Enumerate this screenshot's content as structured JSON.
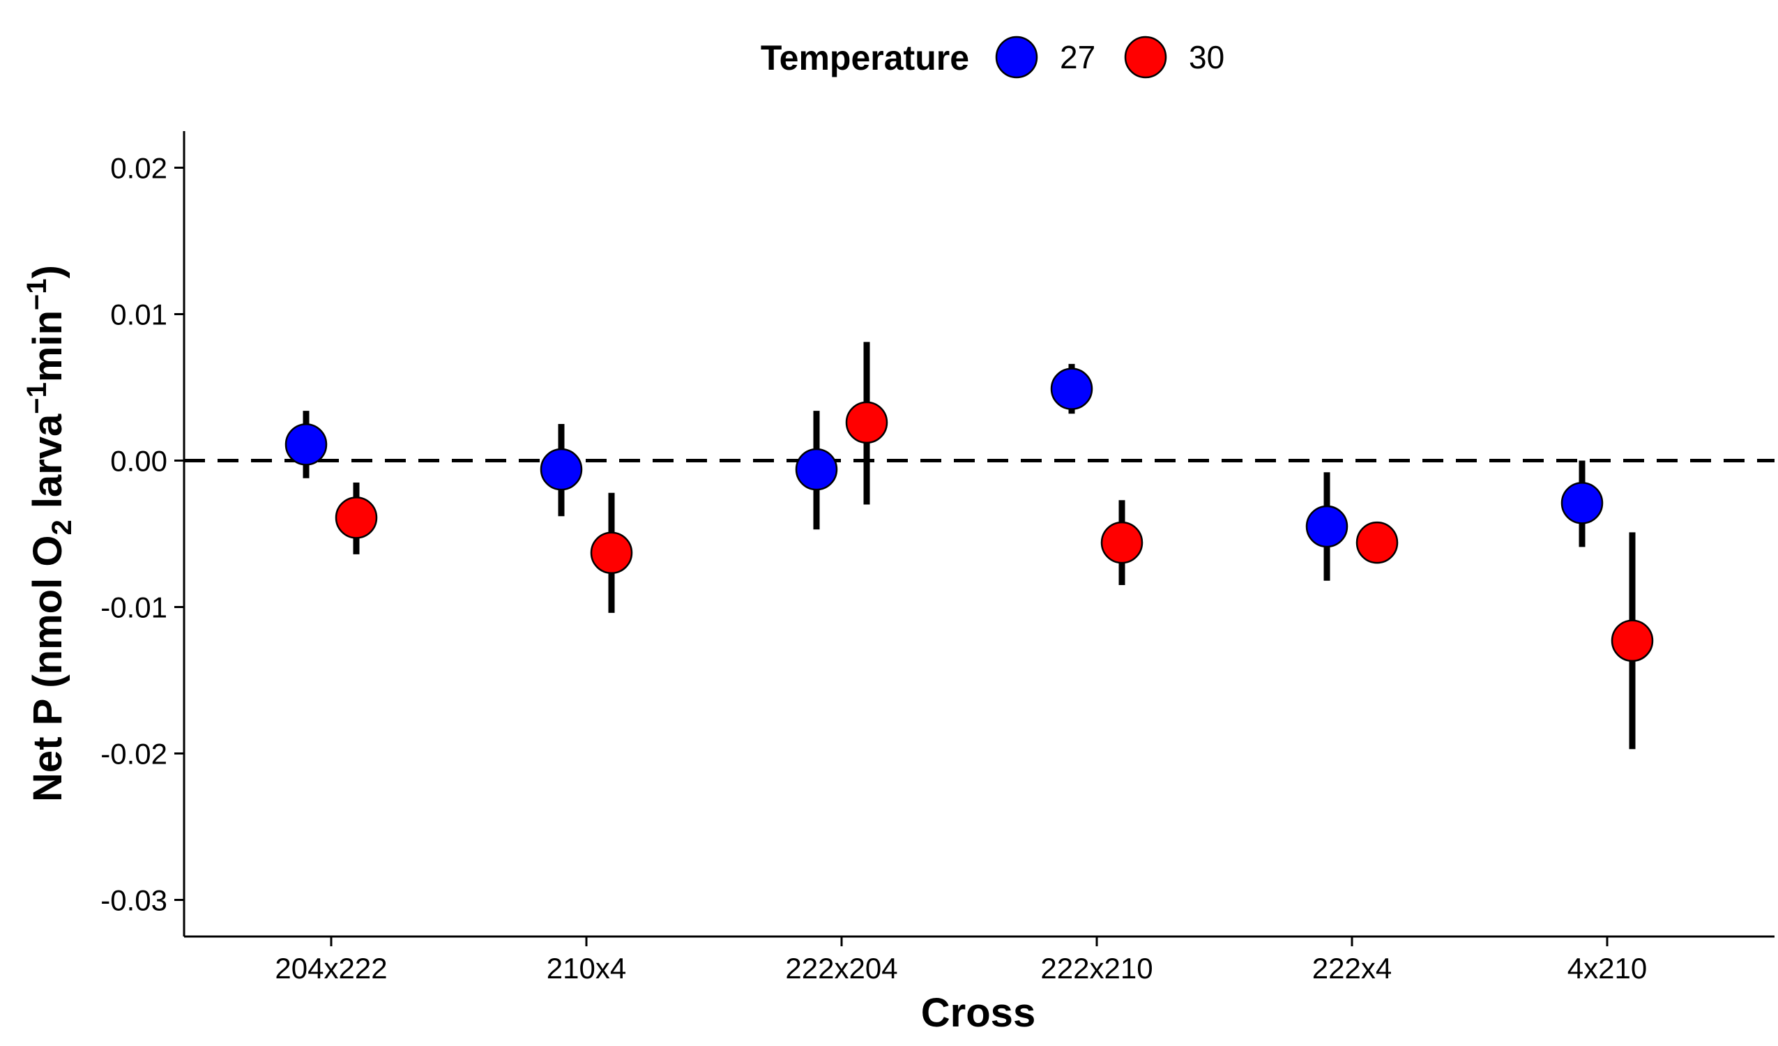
{
  "chart_data": {
    "type": "scatter",
    "title": "",
    "xlabel": "Cross",
    "ylabel": {
      "parts": [
        "Net P (nmol O",
        "2",
        " larva",
        "−1",
        "min",
        "−1",
        ")"
      ]
    },
    "categories": [
      "204x222",
      "210x4",
      "222x204",
      "222x210",
      "222x4",
      "4x210"
    ],
    "y_ticks": [
      0.02,
      0.01,
      0.0,
      -0.01,
      -0.02,
      -0.03
    ],
    "y_tick_labels": [
      "0.02",
      "0.01",
      "0.00",
      "-0.01",
      "-0.02",
      "-0.03"
    ],
    "ylim": [
      -0.0325,
      0.0225
    ],
    "reference_line": {
      "y": 0,
      "style": "dashed"
    },
    "legend": {
      "title": "Temperature",
      "position": "top"
    },
    "grid": false,
    "series": [
      {
        "name": "27",
        "color": "#0000ff",
        "values": [
          0.0011,
          -0.0006,
          -0.0006,
          0.0049,
          -0.0045,
          -0.0029
        ],
        "error_low": [
          -0.0012,
          -0.0038,
          -0.0047,
          0.0032,
          -0.0082,
          -0.0059
        ],
        "error_high": [
          0.0034,
          0.0025,
          0.0034,
          0.0066,
          -0.0008,
          0.0
        ]
      },
      {
        "name": "30",
        "color": "#ff0000",
        "values": [
          -0.0039,
          -0.0063,
          0.0026,
          -0.0056,
          -0.0056,
          -0.0123
        ],
        "error_low": [
          -0.0064,
          -0.0104,
          -0.003,
          -0.0085,
          -0.0063,
          -0.0197
        ],
        "error_high": [
          -0.0015,
          -0.0022,
          0.0081,
          -0.0027,
          -0.0048,
          -0.0049
        ]
      }
    ]
  }
}
